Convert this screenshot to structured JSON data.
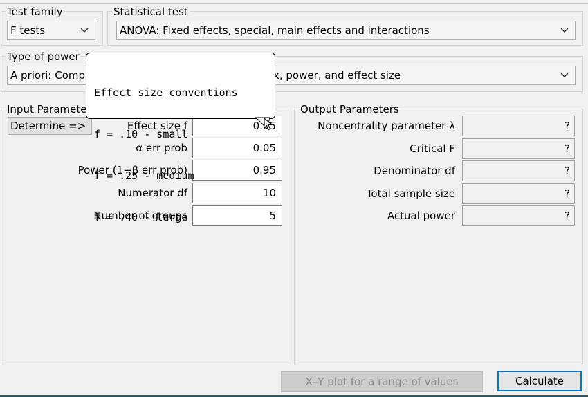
{
  "test_family": {
    "title": "Test family",
    "value": "F tests"
  },
  "statistical_test": {
    "title": "Statistical test",
    "value": "ANOVA: Fixed effects, special, main effects and interactions"
  },
  "power_analysis": {
    "title": "Type of power",
    "value_left": "A priori: Comp",
    "value_right": "x, power, and effect size"
  },
  "tooltip": {
    "heading": "Effect size conventions",
    "lines": [
      "f = .10 - small",
      "f = .25 - medium",
      "f = .40 - large"
    ]
  },
  "input": {
    "title": "Input Paramete",
    "determine_button": "Determine =>",
    "effect_size": {
      "label": "Effect size f",
      "value": "0.25"
    },
    "alpha": {
      "label": "α err prob",
      "value": "0.05"
    },
    "power": {
      "label": "Power (1−β err prob)",
      "value": "0.95"
    },
    "numerator_df": {
      "label": "Numerator df",
      "value": "10"
    },
    "groups": {
      "label": "Number of groups",
      "value": "5"
    }
  },
  "output": {
    "title": "Output Parameters",
    "noncentrality": {
      "label": "Noncentrality parameter λ",
      "value": "?"
    },
    "critical_f": {
      "label": "Critical F",
      "value": "?"
    },
    "denominator_df": {
      "label": "Denominator df",
      "value": "?"
    },
    "total_sample": {
      "label": "Total sample size",
      "value": "?"
    },
    "actual_power": {
      "label": "Actual power",
      "value": "?"
    }
  },
  "buttons": {
    "xy_plot": "X–Y plot for a range of values",
    "calculate": "Calculate"
  }
}
